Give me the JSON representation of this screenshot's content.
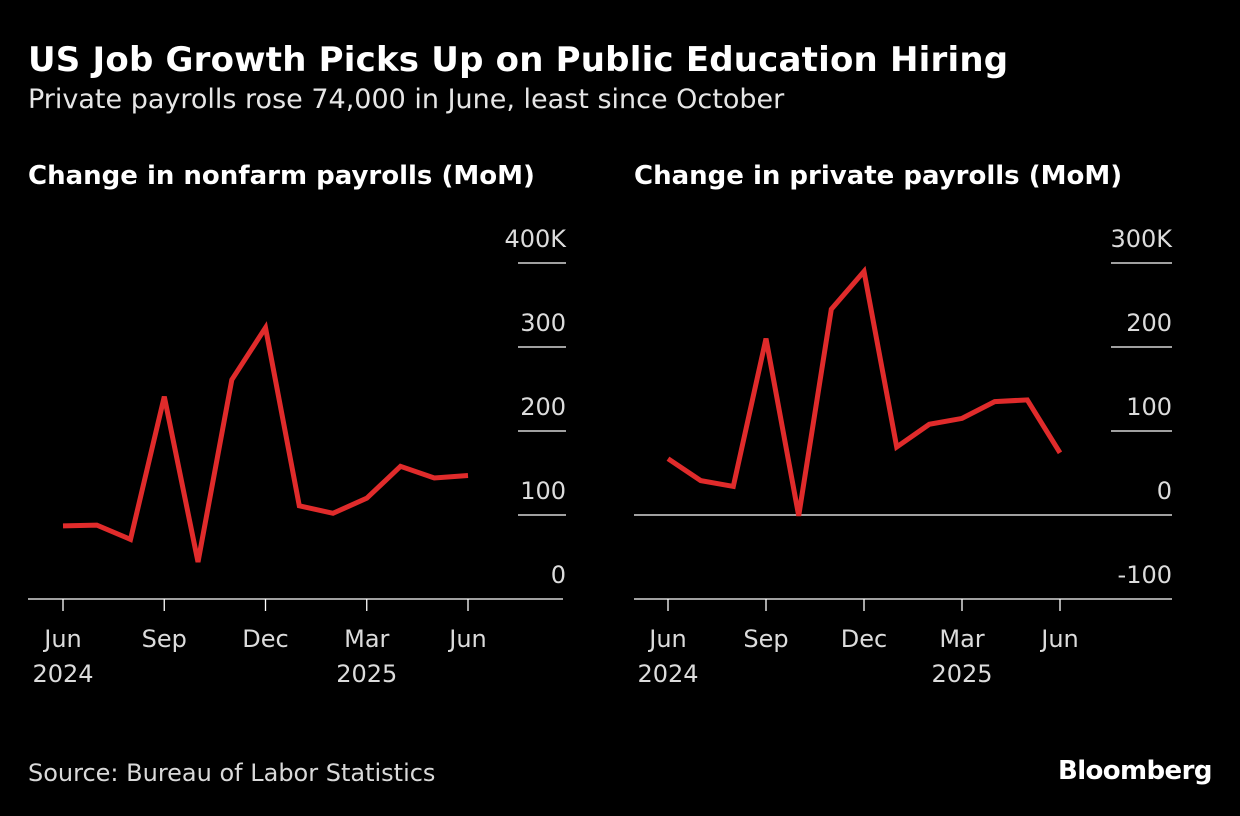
{
  "header": {
    "title": "US Job Growth Picks Up on Public Education Hiring",
    "subtitle": "Private payrolls rose 74,000 in June, least since October"
  },
  "footer": {
    "source": "Source: Bureau of Labor Statistics",
    "brand": "Bloomberg"
  },
  "colors": {
    "background": "#000000",
    "line": "#e02b2b",
    "axis": "#ffffff",
    "text": "#ffffff"
  },
  "chart_data": [
    {
      "type": "line",
      "title": "Change in nonfarm payrolls (MoM)",
      "x": [
        "2024-06",
        "2024-07",
        "2024-08",
        "2024-09",
        "2024-10",
        "2024-11",
        "2024-12",
        "2025-01",
        "2025-02",
        "2025-03",
        "2025-04",
        "2025-05",
        "2025-06"
      ],
      "series": [
        {
          "values": [
            87,
            88,
            71,
            241,
            44,
            261,
            323,
            111,
            102,
            120,
            158,
            144,
            147
          ]
        }
      ],
      "ylim": [
        0,
        400
      ],
      "y_ticks": [
        0,
        100,
        200,
        300,
        400
      ],
      "y_tick_labels": [
        "0",
        "100",
        "200",
        "300",
        "400K"
      ],
      "x_ticks": [
        "2024-06",
        "2024-09",
        "2024-12",
        "2025-03",
        "2025-06"
      ],
      "x_tick_labels": [
        "Jun",
        "Sep",
        "Dec",
        "Mar",
        "Jun"
      ],
      "year_labels": [
        {
          "at": "2024-06",
          "label": "2024"
        },
        {
          "at": "2025-03",
          "label": "2025"
        }
      ],
      "grid": true,
      "axis_side": "right"
    },
    {
      "type": "line",
      "title": "Change in private payrolls (MoM)",
      "x": [
        "2024-06",
        "2024-07",
        "2024-08",
        "2024-09",
        "2024-10",
        "2024-11",
        "2024-12",
        "2025-01",
        "2025-02",
        "2025-03",
        "2025-04",
        "2025-05",
        "2025-06"
      ],
      "series": [
        {
          "values": [
            67,
            41,
            34,
            210,
            -1,
            245,
            290,
            81,
            108,
            115,
            135,
            137,
            74
          ]
        }
      ],
      "ylim": [
        -100,
        300
      ],
      "y_ticks": [
        -100,
        0,
        100,
        200,
        300
      ],
      "y_tick_labels": [
        "-100",
        "0",
        "100",
        "200",
        "300K"
      ],
      "x_ticks": [
        "2024-06",
        "2024-09",
        "2024-12",
        "2025-03",
        "2025-06"
      ],
      "x_tick_labels": [
        "Jun",
        "Sep",
        "Dec",
        "Mar",
        "Jun"
      ],
      "year_labels": [
        {
          "at": "2024-06",
          "label": "2024"
        },
        {
          "at": "2025-03",
          "label": "2025"
        }
      ],
      "grid": true,
      "axis_side": "right"
    }
  ]
}
